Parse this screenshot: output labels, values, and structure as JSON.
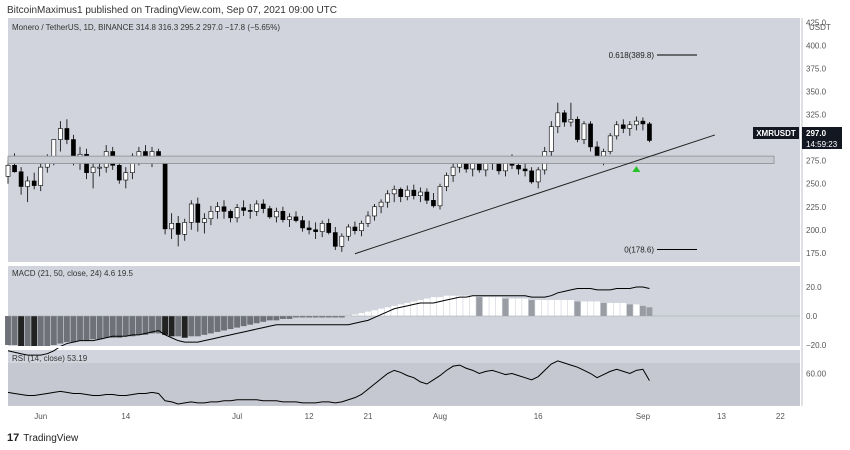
{
  "publish_line": "BitcoinMaximus1 published on TradingView.com, Sep 07, 2021 09:00 UTC",
  "footer_brand": "TradingView",
  "logo_text": "17",
  "colors": {
    "bg": "#d1d4dc",
    "bull": "#ffffff",
    "bear": "#000000",
    "wick": "#000000",
    "fib": "#000000",
    "support_zone_fill": "#c8cbd2",
    "marker": "#26c226"
  },
  "main": {
    "title": "Monero / TetherUS, 1D, BINANCE",
    "ohlc": [
      "314.8",
      "316.3",
      "295.2",
      "297.0",
      "−17.8 (−5.65%)"
    ],
    "currency": "USDT",
    "price_label": "XMRUSDT",
    "price_value": "297.0",
    "price_countdown": "14:59:23",
    "fib_top_label": "0.618(389.8)",
    "fib_bottom_label": "0(178.6)",
    "y_ticks": [
      "425.0",
      "400.0",
      "375.0",
      "350.0",
      "325.0",
      "300.0",
      "275.0",
      "250.0",
      "225.0",
      "200.0",
      "175.0"
    ]
  },
  "macd": {
    "title": "MACD (21, 50, close, 24)",
    "value1": "4.6",
    "value2": "19.5",
    "y_ticks": [
      "20.0",
      "0.0",
      "−20.0"
    ]
  },
  "rsi": {
    "title": "RSI (14, close)",
    "value": "53.19",
    "y_ticks": [
      "60.00"
    ]
  },
  "x_ticks": [
    "Jun",
    "14",
    "Jul",
    "12",
    "21",
    "Aug",
    "16",
    "Sep",
    "13",
    "22"
  ],
  "chart_data": {
    "type": "candlestick",
    "title": "Monero / TetherUS, 1D, BINANCE",
    "x_range": [
      "2021-05-27",
      "2021-09-25"
    ],
    "ylim": [
      165,
      430
    ],
    "series": [
      {
        "name": "XMRUSDT",
        "ohlc": [
          [
            258,
            276,
            250,
            270
          ],
          [
            270,
            283,
            262,
            263
          ],
          [
            263,
            268,
            238,
            247
          ],
          [
            247,
            258,
            230,
            253
          ],
          [
            253,
            262,
            244,
            248
          ],
          [
            248,
            273,
            242,
            268
          ],
          [
            268,
            282,
            262,
            277
          ],
          [
            277,
            298,
            270,
            298
          ],
          [
            298,
            318,
            285,
            310
          ],
          [
            310,
            320,
            293,
            298
          ],
          [
            298,
            303,
            270,
            276
          ],
          [
            276,
            290,
            265,
            282
          ],
          [
            282,
            288,
            255,
            262
          ],
          [
            262,
            272,
            245,
            268
          ],
          [
            268,
            280,
            258,
            268
          ],
          [
            268,
            292,
            262,
            285
          ],
          [
            285,
            290,
            265,
            270
          ],
          [
            270,
            280,
            250,
            254
          ],
          [
            254,
            268,
            245,
            262
          ],
          [
            262,
            283,
            255,
            280
          ],
          [
            280,
            290,
            270,
            285
          ],
          [
            285,
            292,
            274,
            278
          ],
          [
            278,
            290,
            268,
            285
          ],
          [
            285,
            288,
            272,
            276
          ],
          [
            276,
            280,
            195,
            201
          ],
          [
            201,
            218,
            190,
            207
          ],
          [
            207,
            215,
            182,
            195
          ],
          [
            195,
            212,
            188,
            208
          ],
          [
            208,
            232,
            200,
            228
          ],
          [
            228,
            235,
            198,
            208
          ],
          [
            208,
            218,
            196,
            212
          ],
          [
            212,
            226,
            205,
            220
          ],
          [
            220,
            230,
            212,
            225
          ],
          [
            225,
            232,
            212,
            220
          ],
          [
            220,
            222,
            208,
            213
          ],
          [
            213,
            228,
            208,
            224
          ],
          [
            224,
            232,
            215,
            221
          ],
          [
            221,
            228,
            212,
            220
          ],
          [
            220,
            232,
            215,
            228
          ],
          [
            228,
            233,
            218,
            223
          ],
          [
            223,
            226,
            212,
            214
          ],
          [
            214,
            224,
            208,
            220
          ],
          [
            220,
            225,
            208,
            211
          ],
          [
            211,
            218,
            203,
            214
          ],
          [
            214,
            220,
            208,
            210
          ],
          [
            210,
            215,
            198,
            202
          ],
          [
            202,
            210,
            195,
            200
          ],
          [
            200,
            208,
            190,
            198
          ],
          [
            198,
            210,
            192,
            207
          ],
          [
            207,
            212,
            195,
            197
          ],
          [
            197,
            203,
            178,
            182
          ],
          [
            182,
            196,
            176,
            193
          ],
          [
            193,
            206,
            188,
            203
          ],
          [
            203,
            209,
            195,
            199
          ],
          [
            199,
            210,
            193,
            207
          ],
          [
            207,
            220,
            203,
            215
          ],
          [
            215,
            228,
            210,
            225
          ],
          [
            225,
            233,
            218,
            230
          ],
          [
            230,
            243,
            224,
            239
          ],
          [
            239,
            248,
            230,
            244
          ],
          [
            244,
            246,
            230,
            236
          ],
          [
            236,
            248,
            232,
            243
          ],
          [
            243,
            249,
            233,
            237
          ],
          [
            237,
            246,
            230,
            241
          ],
          [
            241,
            245,
            228,
            232
          ],
          [
            232,
            240,
            224,
            226
          ],
          [
            226,
            250,
            222,
            247
          ],
          [
            247,
            262,
            242,
            259
          ],
          [
            259,
            272,
            252,
            268
          ],
          [
            268,
            280,
            262,
            276
          ],
          [
            276,
            280,
            262,
            266
          ],
          [
            266,
            275,
            258,
            272
          ],
          [
            272,
            278,
            262,
            265
          ],
          [
            265,
            276,
            258,
            273
          ],
          [
            273,
            280,
            265,
            272
          ],
          [
            272,
            278,
            260,
            264
          ],
          [
            264,
            278,
            258,
            275
          ],
          [
            275,
            282,
            266,
            270
          ],
          [
            270,
            276,
            260,
            266
          ],
          [
            266,
            274,
            258,
            264
          ],
          [
            264,
            268,
            250,
            252
          ],
          [
            252,
            268,
            245,
            265
          ],
          [
            265,
            290,
            260,
            285
          ],
          [
            285,
            318,
            280,
            312
          ],
          [
            312,
            338,
            305,
            327
          ],
          [
            327,
            330,
            312,
            317
          ],
          [
            317,
            338,
            312,
            320
          ],
          [
            320,
            323,
            295,
            298
          ],
          [
            298,
            318,
            293,
            315
          ],
          [
            315,
            318,
            285,
            290
          ],
          [
            290,
            296,
            275,
            280
          ],
          [
            280,
            288,
            270,
            285
          ],
          [
            285,
            305,
            282,
            302
          ],
          [
            302,
            318,
            298,
            314
          ],
          [
            314,
            320,
            305,
            310
          ],
          [
            310,
            318,
            302,
            314
          ],
          [
            314,
            323,
            308,
            318
          ],
          [
            318,
            322,
            308,
            315
          ],
          [
            315,
            317,
            295,
            297
          ]
        ]
      },
      {
        "name": "MACD",
        "values": [
          -24,
          -25,
          -26,
          -27,
          -27,
          -27,
          -26,
          -24,
          -21,
          -19,
          -18,
          -17,
          -17,
          -17,
          -16,
          -15,
          -14,
          -14,
          -14,
          -13,
          -13,
          -12,
          -11,
          -10,
          -13,
          -15,
          -17,
          -18,
          -18,
          -18,
          -17,
          -16,
          -15,
          -14,
          -13,
          -12,
          -11,
          -10,
          -9,
          -8,
          -7,
          -6,
          -6,
          -6,
          -6,
          -6,
          -6,
          -6,
          -6,
          -6,
          -6,
          -6,
          -6,
          -5,
          -4,
          -3,
          -1,
          1,
          3,
          5,
          6,
          7,
          8,
          9,
          9,
          9,
          10,
          11,
          12,
          13,
          13,
          14,
          14,
          14,
          14,
          14,
          14,
          14,
          14,
          14,
          13,
          13,
          13,
          14,
          16,
          17,
          18,
          19,
          19,
          19,
          18,
          18,
          18,
          19,
          19,
          19,
          20,
          20,
          19
        ]
      },
      {
        "name": "MACD histogram",
        "values": [
          -20,
          -20,
          -21,
          -21,
          -22,
          -22,
          -21,
          -20,
          -19,
          -18,
          -18,
          -17,
          -17,
          -16,
          -16,
          -15,
          -15,
          -15,
          -14,
          -14,
          -13,
          -13,
          -12,
          -12,
          -13,
          -14,
          -14,
          -15,
          -14,
          -14,
          -13,
          -12,
          -11,
          -10,
          -9,
          -8,
          -7,
          -6,
          -5,
          -4,
          -3,
          -3,
          -2,
          -2,
          -1,
          -1,
          -1,
          -1,
          -1,
          -1,
          -1,
          -1,
          0,
          1,
          2,
          3,
          4,
          5,
          6,
          7,
          8,
          9,
          10,
          11,
          12,
          13,
          13,
          14,
          14,
          14,
          14,
          14,
          13,
          13,
          13,
          13,
          12,
          12,
          12,
          12,
          11,
          11,
          11,
          11,
          11,
          11,
          11,
          10,
          10,
          10,
          10,
          9,
          9,
          9,
          9,
          8,
          8,
          7,
          6
        ]
      },
      {
        "name": "RSI",
        "values": [
          42,
          41,
          40,
          39,
          39,
          40,
          41,
          42,
          43,
          42,
          41,
          41,
          40,
          39,
          39,
          40,
          40,
          39,
          39,
          40,
          41,
          41,
          42,
          41,
          34,
          33,
          31,
          32,
          33,
          32,
          32,
          33,
          33,
          34,
          34,
          35,
          35,
          35,
          35,
          34,
          34,
          34,
          33,
          33,
          33,
          32,
          32,
          32,
          33,
          33,
          32,
          33,
          35,
          37,
          40,
          45,
          50,
          55,
          60,
          63,
          61,
          58,
          56,
          52,
          50,
          54,
          58,
          63,
          67,
          68,
          65,
          63,
          60,
          62,
          63,
          61,
          59,
          60,
          58,
          56,
          54,
          57,
          63,
          69,
          72,
          70,
          68,
          66,
          63,
          60,
          56,
          59,
          62,
          64,
          62,
          60,
          63,
          64,
          53.19
        ]
      }
    ],
    "annotations": {
      "fib_top": {
        "label": "0.618(389.8)",
        "value": 389.8
      },
      "fib_bottom": {
        "label": "0(178.6)",
        "value": 178.6
      },
      "support_zone": {
        "from": 272,
        "to": 280
      },
      "ascending_trendline": {
        "start": [
          "2021-07-19",
          174
        ],
        "end": [
          "2021-09-12",
          303
        ]
      },
      "marker": {
        "date": "2021-08-31",
        "value": 266
      }
    },
    "grid": false,
    "legend": "top-left"
  }
}
